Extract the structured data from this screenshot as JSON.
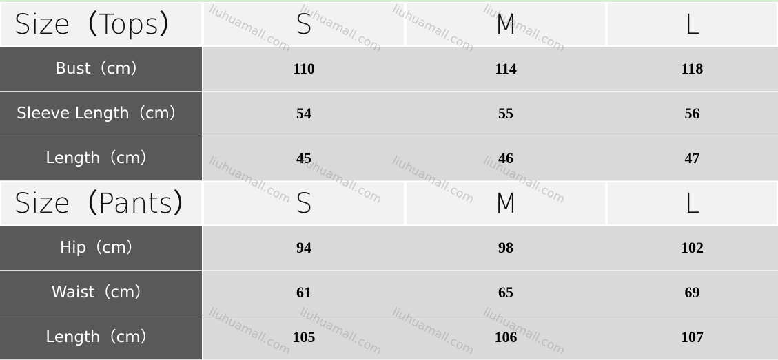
{
  "watermark": "liuhuamall.com",
  "colors": {
    "label_bg": "#595959",
    "cell_bg": "#d9d9d9",
    "header_bg": "#f2f2f2"
  },
  "sections": [
    {
      "title": "Size（Tops）",
      "sizes": [
        "S",
        "M",
        "L"
      ],
      "rows": [
        {
          "label": "Bust（cm）",
          "values": [
            "110",
            "114",
            "118"
          ]
        },
        {
          "label": "Sleeve Length（cm）",
          "values": [
            "54",
            "55",
            "56"
          ]
        },
        {
          "label": "Length（cm）",
          "values": [
            "45",
            "46",
            "47"
          ]
        }
      ]
    },
    {
      "title": "Size（Pants）",
      "sizes": [
        "S",
        "M",
        "L"
      ],
      "rows": [
        {
          "label": "Hip（cm）",
          "values": [
            "94",
            "98",
            "102"
          ]
        },
        {
          "label": "Waist（cm）",
          "values": [
            "61",
            "65",
            "69"
          ]
        },
        {
          "label": "Length（cm）",
          "values": [
            "105",
            "106",
            "107"
          ]
        }
      ]
    }
  ]
}
